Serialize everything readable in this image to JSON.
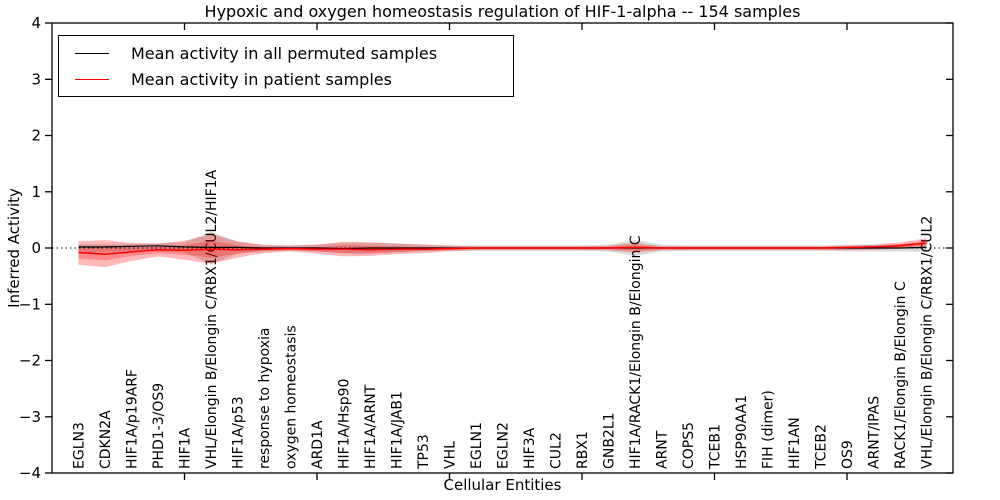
{
  "figure": {
    "title": "Hypoxic and oxygen homeostasis regulation of HIF-1-alpha -- 154 samples",
    "xlabel": "Cellular Entities",
    "ylabel": "Inferred Activity",
    "legend": {
      "entries": [
        {
          "label": "Mean activity in all permuted samples",
          "color": "#000000"
        },
        {
          "label": "Mean activity in patient samples",
          "color": "#ff0000"
        }
      ],
      "position": "upper left"
    }
  },
  "chart_data": {
    "type": "line",
    "title": "Hypoxic and oxygen homeostasis regulation of HIF-1-alpha -- 154 samples",
    "xlabel": "Cellular Entities",
    "ylabel": "Inferred Activity",
    "ylim": [
      -4,
      4
    ],
    "yticks": [
      -4,
      -3,
      -2,
      -1,
      0,
      1,
      2,
      3,
      4
    ],
    "ytick_labels": [
      "−4",
      "−3",
      "−2",
      "−1",
      "0",
      "1",
      "2",
      "3",
      "4"
    ],
    "xtick_point_numbers": [
      5,
      10,
      15,
      20,
      25,
      30
    ],
    "grid": false,
    "zero_line": 0,
    "legend_position": "upper left",
    "categories": [
      "EGLN3",
      "CDKN2A",
      "HIF1A/p19ARF",
      "PHD1-3/OS9",
      "HIF1A",
      "VHL/Elongin B/Elongin C/RBX1/CUL2/HIF1A",
      "HIF1A/p53",
      "response to hypoxia",
      "oxygen homeostasis",
      "ARD1A",
      "HIF1A/Hsp90",
      "HIF1A/ARNT",
      "HIF1A/JAB1",
      "TP53",
      "VHL",
      "EGLN1",
      "EGLN2",
      "HIF3A",
      "CUL2",
      "RBX1",
      "GNB2L1",
      "HIF1A/RACK1/Elongin B/Elongin C",
      "ARNT",
      "COPS5",
      "TCEB1",
      "HSP90AA1",
      "FIH (dimer)",
      "HIF1AN",
      "TCEB2",
      "OS9",
      "ARNT/IPAS",
      "RACK1/Elongin B/Elongin C",
      "VHL/Elongin B/Elongin C/RBX1/CUL2"
    ],
    "series": [
      {
        "name": "Mean activity in all permuted samples",
        "color": "#000000",
        "width": 1.2,
        "values": [
          0.02,
          0.02,
          0.03,
          0.04,
          0.02,
          0.01,
          0.01,
          0.0,
          0.0,
          0.0,
          -0.01,
          0.0,
          0.0,
          0.0,
          0.0,
          0.0,
          0.0,
          0.0,
          0.0,
          0.0,
          0.0,
          0.0,
          0.0,
          0.0,
          0.0,
          0.0,
          0.0,
          0.0,
          0.0,
          0.0,
          0.0,
          0.0,
          0.01
        ]
      },
      {
        "name": "Mean activity in patient samples",
        "color": "#ff0000",
        "width": 1.5,
        "values": [
          -0.08,
          -0.11,
          -0.07,
          -0.03,
          -0.04,
          -0.02,
          -0.03,
          -0.02,
          -0.01,
          -0.02,
          -0.02,
          -0.03,
          -0.02,
          -0.02,
          -0.01,
          0.0,
          0.0,
          0.0,
          0.0,
          0.0,
          0.0,
          0.01,
          0.0,
          0.0,
          0.0,
          0.0,
          0.0,
          0.0,
          0.0,
          0.01,
          0.02,
          0.04,
          0.09
        ]
      }
    ],
    "bands": [
      {
        "name": "permuted-samples-range",
        "color": "rgba(0,0,0,0.15)",
        "upper": [
          0.07,
          0.07,
          0.07,
          0.08,
          0.1,
          0.29,
          0.11,
          0.06,
          0.05,
          0.06,
          0.09,
          0.09,
          0.08,
          0.06,
          0.05,
          0.05,
          0.05,
          0.05,
          0.05,
          0.05,
          0.06,
          0.14,
          0.06,
          0.05,
          0.05,
          0.05,
          0.05,
          0.05,
          0.05,
          0.06,
          0.06,
          0.07,
          0.09
        ],
        "lower": [
          -0.07,
          -0.07,
          -0.06,
          -0.06,
          -0.08,
          -0.29,
          -0.1,
          -0.06,
          -0.05,
          -0.06,
          -0.1,
          -0.1,
          -0.08,
          -0.06,
          -0.05,
          -0.05,
          -0.05,
          -0.05,
          -0.05,
          -0.05,
          -0.06,
          -0.14,
          -0.06,
          -0.05,
          -0.05,
          -0.05,
          -0.05,
          -0.05,
          -0.05,
          -0.06,
          -0.06,
          -0.06,
          -0.07
        ]
      },
      {
        "name": "patient-samples-outer-band",
        "color": "rgba(255,0,0,0.28)",
        "upper": [
          0.12,
          0.14,
          0.09,
          0.08,
          0.13,
          0.24,
          0.12,
          0.05,
          0.04,
          0.06,
          0.11,
          0.1,
          0.08,
          0.06,
          0.04,
          0.03,
          0.03,
          0.03,
          0.03,
          0.03,
          0.04,
          0.09,
          0.03,
          0.03,
          0.03,
          0.03,
          0.03,
          0.03,
          0.03,
          0.04,
          0.06,
          0.1,
          0.17
        ],
        "lower": [
          -0.3,
          -0.34,
          -0.23,
          -0.15,
          -0.21,
          -0.28,
          -0.17,
          -0.09,
          -0.06,
          -0.1,
          -0.15,
          -0.14,
          -0.11,
          -0.09,
          -0.06,
          -0.04,
          -0.04,
          -0.04,
          -0.04,
          -0.04,
          -0.04,
          -0.08,
          -0.04,
          -0.04,
          -0.04,
          -0.04,
          -0.04,
          -0.04,
          -0.04,
          -0.04,
          -0.03,
          -0.01,
          0.01
        ]
      },
      {
        "name": "patient-samples-inner-band",
        "color": "rgba(255,0,0,0.26)",
        "upper": [
          0.02,
          0.02,
          0.01,
          0.02,
          0.05,
          0.13,
          0.05,
          0.02,
          0.01,
          0.02,
          0.05,
          0.04,
          0.03,
          0.02,
          0.01,
          0.01,
          0.01,
          0.01,
          0.01,
          0.01,
          0.02,
          0.05,
          0.01,
          0.01,
          0.01,
          0.01,
          0.01,
          0.01,
          0.01,
          0.02,
          0.03,
          0.07,
          0.13
        ],
        "lower": [
          -0.19,
          -0.22,
          -0.14,
          -0.09,
          -0.12,
          -0.17,
          -0.1,
          -0.05,
          -0.03,
          -0.06,
          -0.09,
          -0.09,
          -0.07,
          -0.05,
          -0.03,
          -0.02,
          -0.02,
          -0.02,
          -0.02,
          -0.02,
          -0.02,
          -0.04,
          -0.02,
          -0.02,
          -0.02,
          -0.02,
          -0.02,
          -0.02,
          -0.02,
          -0.02,
          -0.01,
          0.01,
          0.05
        ]
      }
    ]
  }
}
